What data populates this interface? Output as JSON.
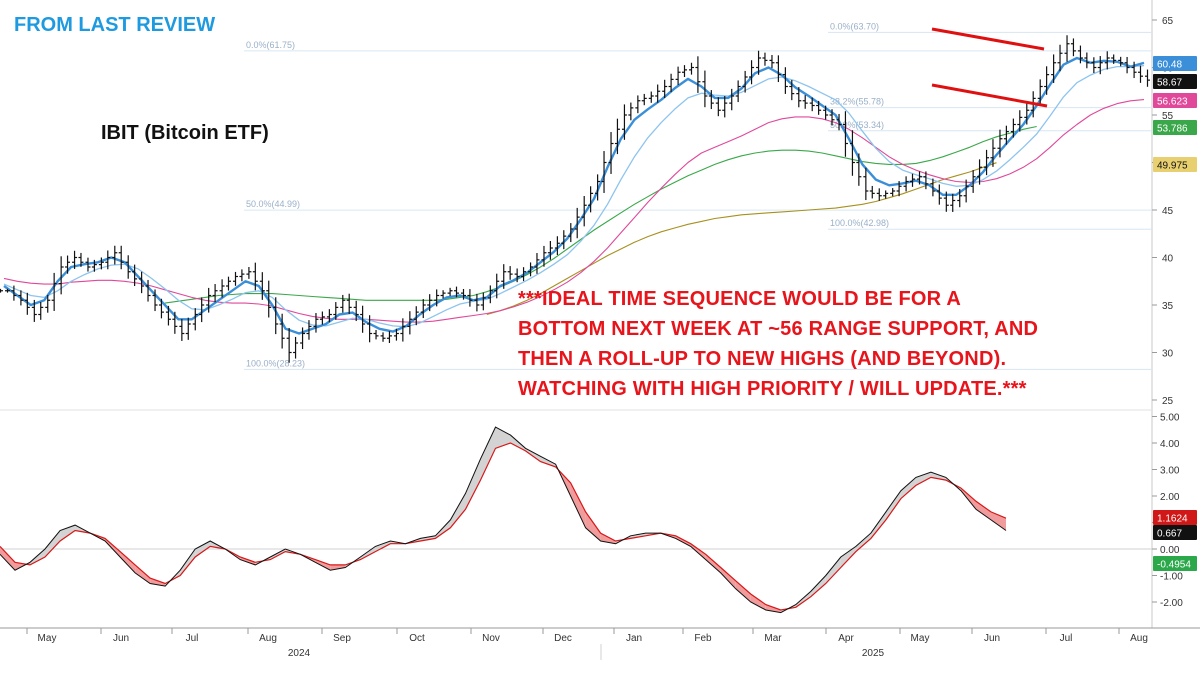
{
  "header": "FROM LAST REVIEW",
  "ticker_label": "IBIT (Bitcoin ETF)",
  "annotation_lines": [
    "***IDEAL TIME SEQUENCE WOULD BE FOR A",
    "BOTTOM NEXT WEEK AT ~56 RANGE SUPPORT, AND",
    "THEN A ROLL-UP TO NEW HIGHS (AND BEYOND).",
    "WATCHING WITH HIGH PRIORITY / WILL UPDATE.***"
  ],
  "colors": {
    "header": "#1e9ae0",
    "annotation": "#e8141b",
    "price_bars": "#111111",
    "ma_fast": "#3a8fd8",
    "ma_slow": "#8ec4ee",
    "ma_magenta": "#e0489a",
    "ma_green": "#3aa84a",
    "ma_olive": "#a8901e",
    "channel": "#e01010",
    "fib_lines": "#d7e6f2",
    "osc_fill_up": "#d3d3d3",
    "osc_fill_down": "#f19c9c"
  },
  "chart_data": [
    {
      "type": "line",
      "title": "IBIT (Bitcoin ETF)",
      "xlabel": "",
      "ylabel": "",
      "x_tick_labels": [
        "May",
        "Jun",
        "Jul",
        "Aug",
        "Sep",
        "Oct",
        "Nov",
        "Dec",
        "Jan",
        "Feb",
        "Mar",
        "Apr",
        "May",
        "Jun",
        "Jul",
        "Aug"
      ],
      "year_labels": [
        "2024",
        "2025"
      ],
      "ylim": [
        25,
        65
      ],
      "y_ticks": [
        25,
        30,
        35,
        40,
        45,
        50,
        55,
        60,
        65
      ],
      "scale": "linear",
      "grid": false,
      "fib_levels": [
        {
          "label": "0.0%(61.75)",
          "value": 61.75
        },
        {
          "label": "0.0%(63.70)",
          "value": 63.7
        },
        {
          "label": "38.2%(55.78)",
          "value": 55.78
        },
        {
          "label": "50.0%(53.34)",
          "value": 53.34
        },
        {
          "label": "50.0%(44.99)",
          "value": 44.99
        },
        {
          "label": "100.0%(42.98)",
          "value": 42.98
        },
        {
          "label": "100.0%(28.23)",
          "value": 28.23
        }
      ],
      "last_value_badges": [
        {
          "value": "60.48",
          "color": "#3a8fd8"
        },
        {
          "value": "58.67",
          "color": "#111111"
        },
        {
          "value": "56.623",
          "color": "#e0489a"
        },
        {
          "value": "53.786",
          "color": "#3aa84a"
        },
        {
          "value": "49.975",
          "color": "#a8901e"
        }
      ],
      "series": [
        {
          "values": [
            36.5,
            35.5,
            34,
            35.5,
            39,
            40,
            39,
            39.5,
            40.5,
            38.5,
            37,
            35,
            33.5,
            32,
            34,
            36,
            37,
            38,
            38.5,
            36.5,
            33,
            30,
            32,
            33.5,
            34,
            35.5,
            34,
            32,
            31.5,
            32,
            33.5,
            35,
            36,
            36.5,
            36,
            35,
            36.5,
            38.5,
            38,
            39,
            40.5,
            41.5,
            43,
            45.5,
            48,
            52,
            55,
            56.5,
            57,
            58,
            59.5,
            60,
            57,
            55.5,
            57,
            59,
            61,
            60.5,
            58,
            56.5,
            56,
            55,
            54,
            50,
            47,
            46.5,
            47,
            48,
            48.5,
            47,
            45.5,
            46.5,
            48.5,
            50.5,
            52.5,
            54,
            55.5,
            58,
            60.5,
            62.5,
            61,
            60,
            61,
            60.5,
            59.5,
            58.67
          ]
        },
        {
          "values": [
            37,
            36,
            35,
            35.5,
            37.5,
            39,
            39.3,
            39.5,
            40,
            39.5,
            38,
            36.5,
            35,
            33.5,
            33.5,
            34.5,
            35.5,
            36.5,
            37.5,
            37,
            35,
            32.5,
            32,
            32.5,
            33,
            34,
            34.2,
            33.2,
            32.5,
            32.2,
            32.8,
            34,
            35,
            35.8,
            36,
            35.5,
            35.8,
            37,
            37.6,
            38.4,
            39.5,
            40.6,
            42,
            44,
            46.2,
            49.5,
            52.5,
            54.5,
            55.6,
            56.6,
            57.8,
            58.8,
            58,
            56.8,
            56.8,
            57.8,
            59.4,
            60,
            59.2,
            57.9,
            57,
            56,
            55,
            52.5,
            49.8,
            48.2,
            47.6,
            47.8,
            48.1,
            47.6,
            46.6,
            46.6,
            47.6,
            49,
            50.8,
            52.4,
            54,
            56,
            58.2,
            60.3,
            61,
            60.5,
            60.7,
            60.6,
            60.1,
            60.48
          ]
        },
        {
          "values": [
            37.2,
            36.6,
            36,
            35.8,
            36.5,
            37.5,
            38.2,
            38.8,
            39.2,
            39.3,
            38.8,
            37.8,
            36.7,
            35.5,
            34.6,
            34.5,
            35,
            35.6,
            36.3,
            36.5,
            35.8,
            34.5,
            33.4,
            32.9,
            32.8,
            33.2,
            33.6,
            33.5,
            33.1,
            32.8,
            32.7,
            33.1,
            33.8,
            34.5,
            35.1,
            35.4,
            35.6,
            36.2,
            36.9,
            37.6,
            38.4,
            39.3,
            40.3,
            41.7,
            43.4,
            45.6,
            48.2,
            50.6,
            52.6,
            54.2,
            55.6,
            56.8,
            57.3,
            57.1,
            57,
            57.4,
            58.1,
            58.8,
            59,
            58.6,
            58,
            57.3,
            56.6,
            55.2,
            53.3,
            51.5,
            50.1,
            49.2,
            48.7,
            48.3,
            47.8,
            47.5,
            47.6,
            48.2,
            49.1,
            50.3,
            51.6,
            53,
            54.9,
            56.9,
            58.4,
            59.2,
            59.8,
            60.1,
            60.1,
            60.2
          ]
        },
        {
          "values": [
            37.8,
            37.5,
            37.3,
            37.2,
            37.2,
            37.4,
            37.5,
            37.6,
            37.6,
            37.5,
            37.3,
            37,
            36.6,
            36.2,
            35.8,
            35.5,
            35.3,
            35.2,
            35.2,
            35.1,
            34.9,
            34.5,
            34.1,
            33.8,
            33.6,
            33.5,
            33.5,
            33.5,
            33.4,
            33.3,
            33.2,
            33.2,
            33.3,
            33.5,
            33.7,
            33.9,
            34.1,
            34.4,
            34.8,
            35.3,
            35.9,
            36.6,
            37.4,
            38.4,
            39.6,
            41,
            42.6,
            44.2,
            45.8,
            47.3,
            48.7,
            50,
            51,
            51.6,
            52.2,
            52.8,
            53.5,
            54.2,
            54.6,
            54.8,
            54.8,
            54.6,
            54.2,
            53.5,
            52.6,
            51.6,
            50.6,
            49.8,
            49.2,
            48.7,
            48.3,
            48,
            47.9,
            48,
            48.3,
            48.8,
            49.5,
            50.4,
            51.6,
            52.9,
            54,
            55,
            55.7,
            56.2,
            56.5,
            56.623
          ]
        },
        {
          "x_start": 12,
          "values": [
            35.2,
            35.4,
            35.6,
            35.8,
            36,
            36.1,
            36.2,
            36.2,
            36.2,
            36.1,
            36,
            35.9,
            35.8,
            35.7,
            35.6,
            35.5,
            35.5,
            35.5,
            35.5,
            35.5,
            35.5,
            35.6,
            35.8,
            36,
            36.4,
            36.9,
            37.5,
            38.2,
            39,
            39.9,
            40.9,
            41.9,
            42.9,
            43.8,
            44.7,
            45.6,
            46.4,
            47.2,
            47.9,
            48.6,
            49.2,
            49.8,
            50.3,
            50.7,
            51,
            51.2,
            51.3,
            51.3,
            51.2,
            51,
            50.7,
            50.4,
            50.1,
            49.9,
            49.8,
            49.8,
            49.9,
            50.2,
            50.6,
            51.1,
            51.6,
            52.2,
            52.7,
            53.1,
            53.5,
            53.786
          ]
        },
        {
          "x_start": 36,
          "values": [
            34,
            34.4,
            34.9,
            35.5,
            36.2,
            37,
            37.8,
            38.6,
            39.4,
            40.2,
            40.9,
            41.6,
            42.2,
            42.7,
            43.1,
            43.5,
            43.8,
            44.1,
            44.3,
            44.5,
            44.6,
            44.7,
            44.8,
            44.9,
            45,
            45.1,
            45.2,
            45.4,
            45.6,
            45.9,
            46.3,
            46.7,
            47.2,
            47.7,
            48.2,
            48.6,
            49,
            49.5,
            49.975
          ]
        },
        {
          "name": "oscillator",
          "values": [
            -0.2,
            -0.8,
            -0.5,
            0,
            0.7,
            0.9,
            0.6,
            0.3,
            -0.3,
            -0.9,
            -1.3,
            -1.4,
            -0.8,
            0,
            0.3,
            0,
            -0.4,
            -0.6,
            -0.3,
            0,
            -0.2,
            -0.5,
            -0.8,
            -0.7,
            -0.3,
            0.1,
            0.3,
            0.2,
            0.4,
            0.5,
            1.1,
            2.1,
            3.4,
            4.6,
            4.3,
            3.8,
            3.5,
            3.2,
            2,
            0.8,
            0.3,
            0.2,
            0.5,
            0.6,
            0.6,
            0.4,
            0.1,
            -0.4,
            -0.9,
            -1.5,
            -2,
            -2.3,
            -2.4,
            -2.1,
            -1.6,
            -1,
            -0.3,
            0.1,
            0.6,
            1.4,
            2.2,
            2.7,
            2.9,
            2.7,
            2.2,
            1.5,
            1.1,
            0.7
          ]
        },
        {
          "name": "oscillator signal",
          "values": [
            0.1,
            -0.5,
            -0.6,
            -0.3,
            0.3,
            0.7,
            0.6,
            0.4,
            -0.1,
            -0.6,
            -1.1,
            -1.3,
            -1,
            -0.3,
            0.1,
            0,
            -0.3,
            -0.5,
            -0.4,
            -0.1,
            -0.2,
            -0.4,
            -0.6,
            -0.6,
            -0.4,
            -0.1,
            0.2,
            0.2,
            0.3,
            0.4,
            0.8,
            1.5,
            2.6,
            3.8,
            4,
            3.7,
            3.3,
            3.1,
            2.5,
            1.4,
            0.6,
            0.3,
            0.4,
            0.5,
            0.6,
            0.5,
            0.2,
            -0.2,
            -0.7,
            -1.2,
            -1.7,
            -2.1,
            -2.3,
            -2.2,
            -1.8,
            -1.3,
            -0.7,
            -0.1,
            0.4,
            1.1,
            1.9,
            2.4,
            2.7,
            2.6,
            2.3,
            1.8,
            1.4,
            1.1624
          ]
        }
      ]
    },
    {
      "type": "line",
      "title": "",
      "ylim": [
        -2.5,
        5.5
      ],
      "y_ticks": [
        -2,
        -1,
        0,
        1,
        2,
        3,
        4,
        5
      ],
      "y_tick_labels": [
        "-2.00",
        "-1.00",
        "0.00",
        "1.00",
        "2.00",
        "3.00",
        "4.00",
        "5.00"
      ],
      "last_value_badges": [
        {
          "value": "1.1624",
          "color": "#d01818"
        },
        {
          "value": "0.667",
          "color": "#111111"
        },
        {
          "value": "-0.4954",
          "color": "#2aa84a"
        }
      ]
    }
  ]
}
